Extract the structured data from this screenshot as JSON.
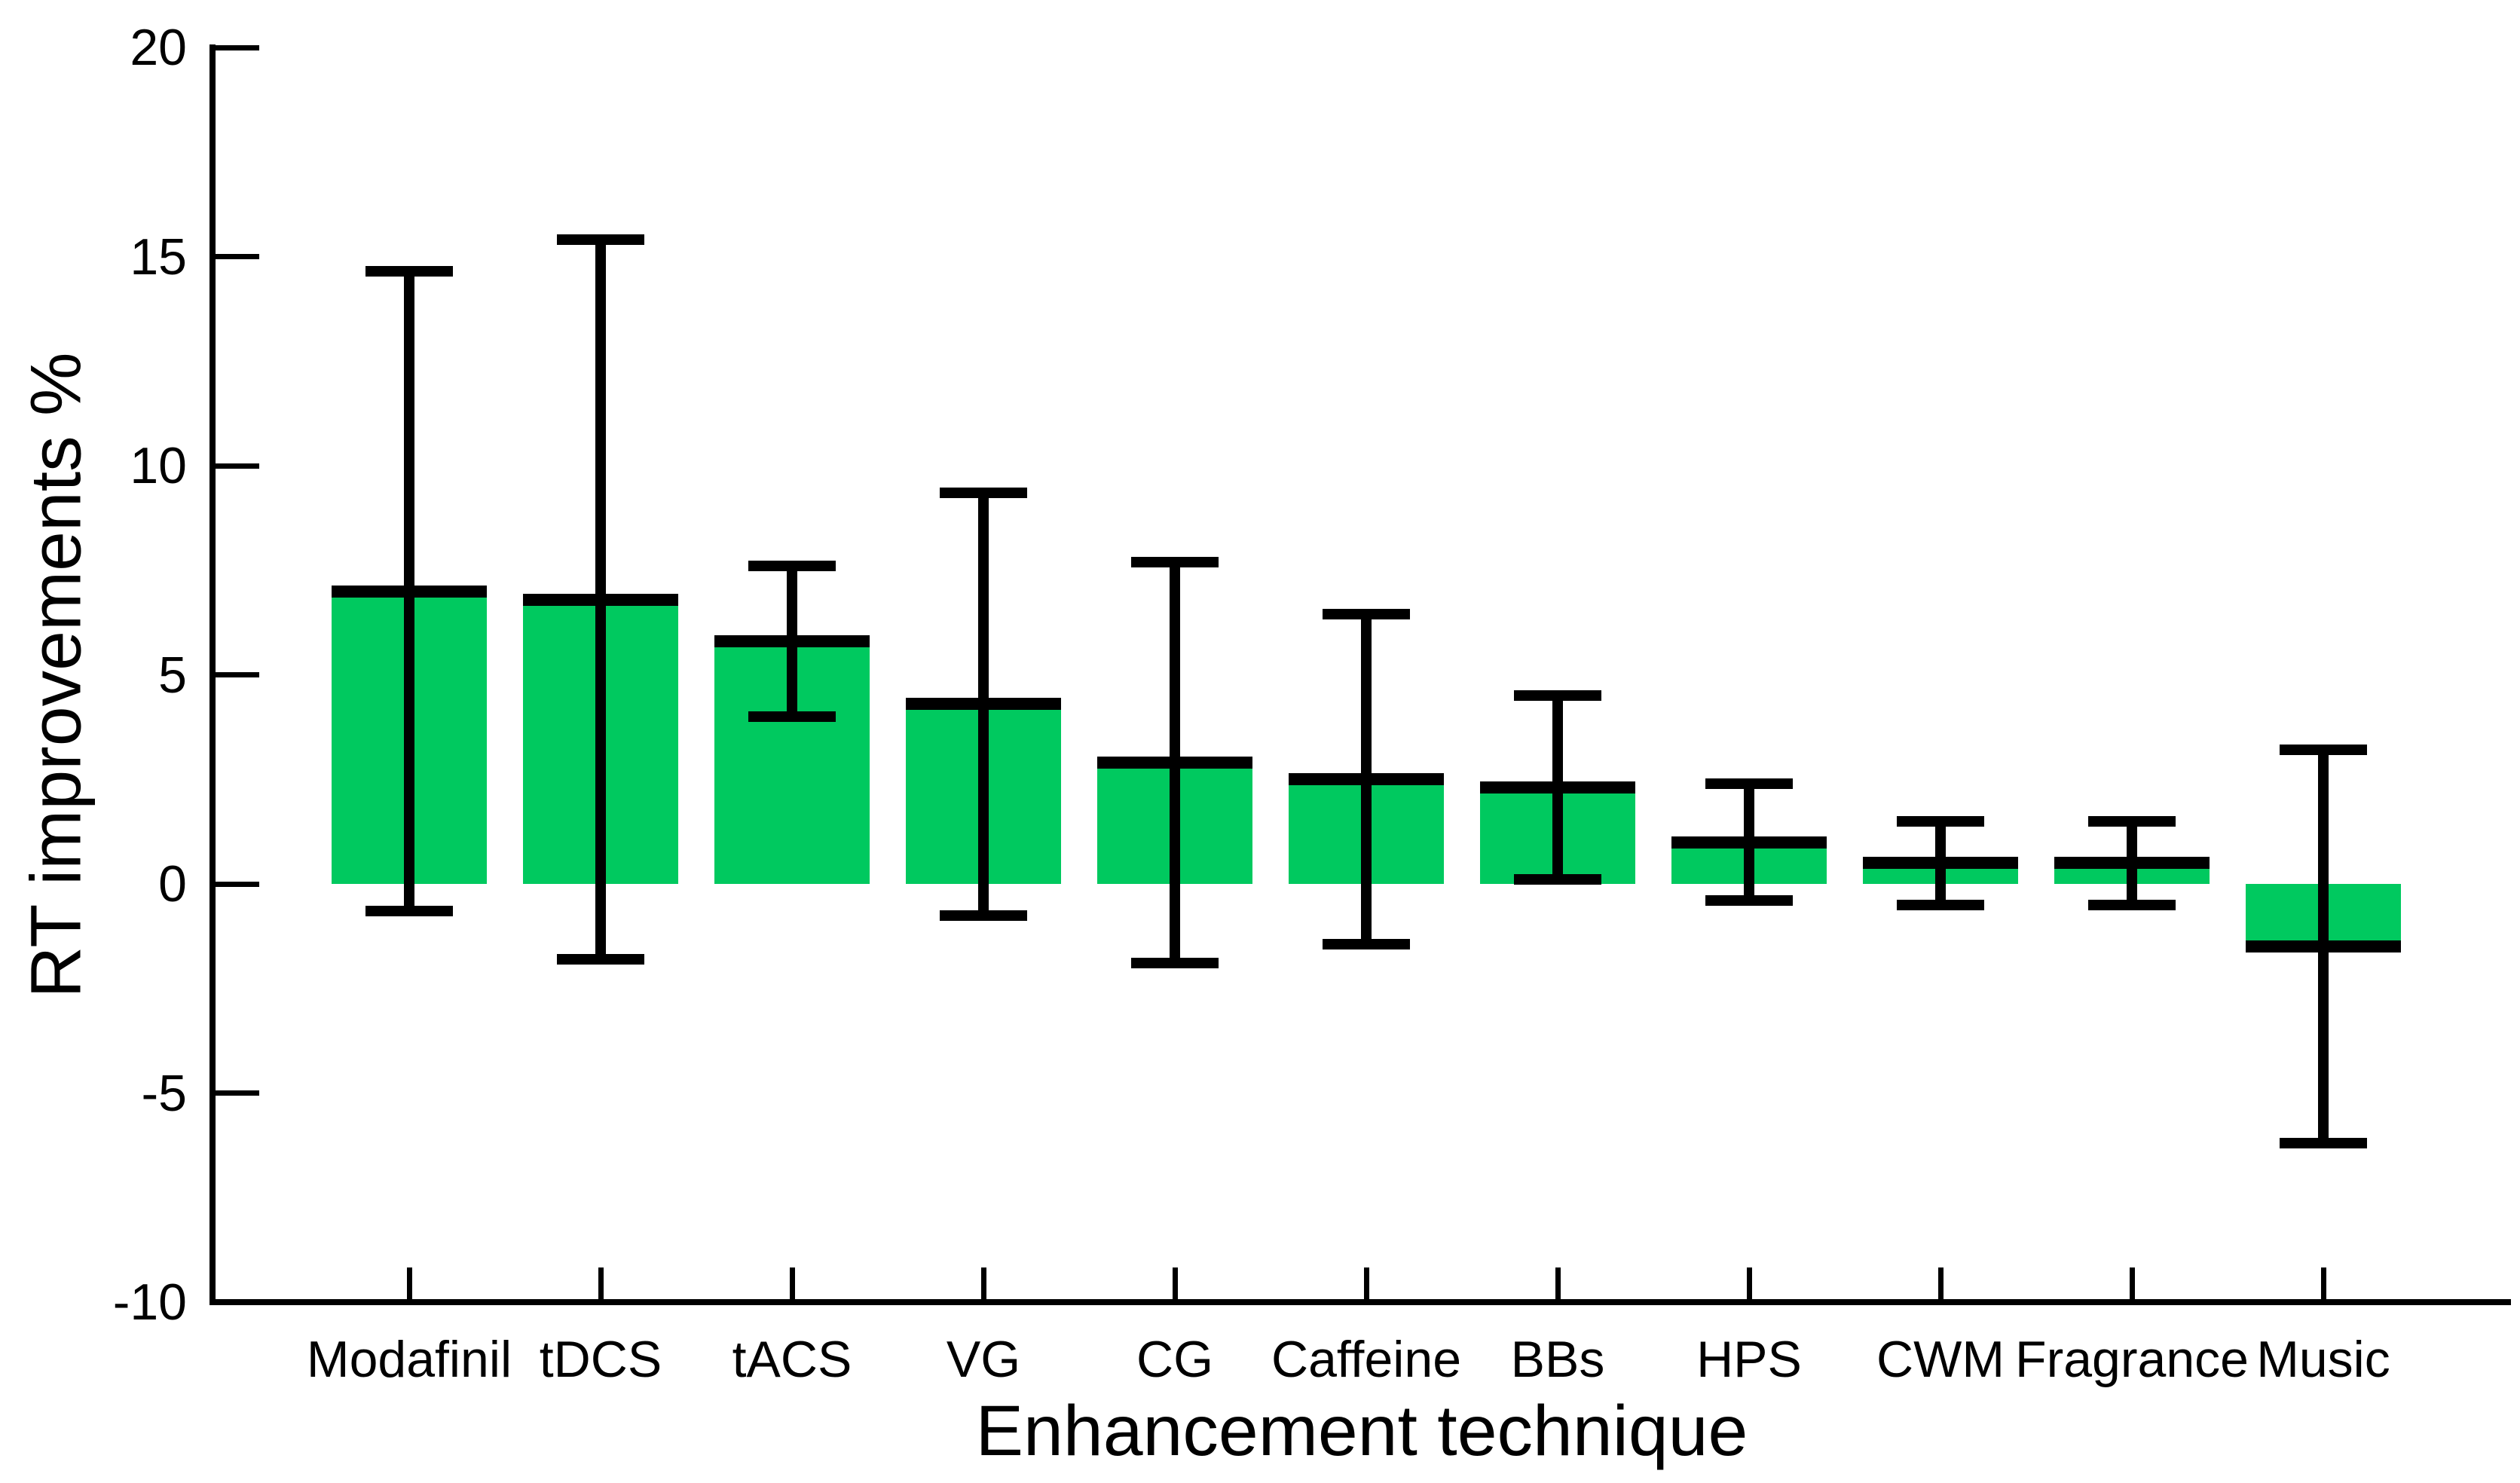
{
  "figure": {
    "background_color": "#ffffff",
    "axis_color": "#000000",
    "text_color": "#000000"
  },
  "chart_data": {
    "type": "bar",
    "title": "",
    "xlabel": "Enhancement technique",
    "ylabel": "RT improvements %",
    "categories": [
      "Modafinil",
      "tDCS",
      "tACS",
      "VG",
      "CG",
      "Caffeine",
      "BBs",
      "HPS",
      "CWM",
      "Fragrance",
      "Music"
    ],
    "values": [
      7.0,
      6.8,
      5.8,
      4.3,
      2.9,
      2.5,
      2.3,
      1.0,
      0.5,
      0.5,
      -1.5
    ],
    "error_bars": [
      7.65,
      8.6,
      1.8,
      5.05,
      4.8,
      3.95,
      2.2,
      1.4,
      1.0,
      1.0,
      4.7
    ],
    "whisker_upper": [
      14.65,
      15.4,
      7.6,
      9.35,
      7.7,
      6.45,
      4.5,
      2.4,
      1.5,
      1.5,
      3.2
    ],
    "whisker_lower": [
      -0.65,
      -1.8,
      4.0,
      -0.75,
      -1.9,
      -1.45,
      0.1,
      -0.4,
      -0.5,
      -0.5,
      -6.2
    ],
    "bar_color": "#00C95F",
    "bar_edge_color": "#000000",
    "error_color": "#000000",
    "ylim": [
      -10,
      20
    ],
    "yticks": [
      20,
      15,
      10,
      5,
      0,
      -5,
      -10
    ],
    "ytick_labels": [
      "20",
      "15",
      "10",
      "5",
      "0",
      "-5",
      "-10"
    ],
    "grid": false,
    "legend_position": "none",
    "baseline": 0
  }
}
